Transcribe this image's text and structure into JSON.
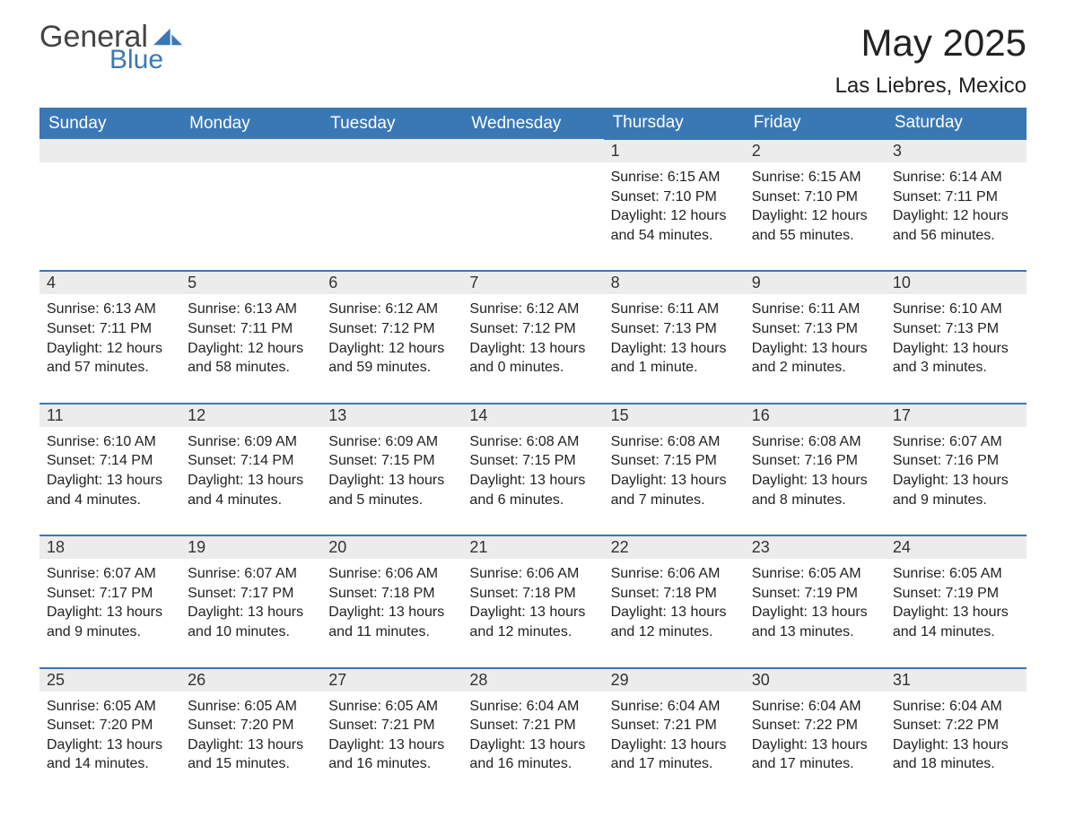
{
  "logo": {
    "text1": "General",
    "text2": "Blue",
    "accent_color": "#3a78b5",
    "text_color": "#444444"
  },
  "title": "May 2025",
  "location": "Las Liebres, Mexico",
  "colors": {
    "header_bg": "#3a78b5",
    "header_text": "#ffffff",
    "daynum_bg": "#ececec",
    "row_border": "#3a78b5",
    "body_text": "#222222",
    "page_bg": "#ffffff"
  },
  "typography": {
    "title_fontsize": 42,
    "location_fontsize": 24,
    "header_fontsize": 19,
    "daynum_fontsize": 18,
    "cell_fontsize": 16
  },
  "layout": {
    "columns": 7,
    "weeks": 5
  },
  "day_headers": [
    "Sunday",
    "Monday",
    "Tuesday",
    "Wednesday",
    "Thursday",
    "Friday",
    "Saturday"
  ],
  "weeks": [
    [
      null,
      null,
      null,
      null,
      {
        "n": "1",
        "sunrise": "6:15 AM",
        "sunset": "7:10 PM",
        "daylight": "12 hours and 54 minutes."
      },
      {
        "n": "2",
        "sunrise": "6:15 AM",
        "sunset": "7:10 PM",
        "daylight": "12 hours and 55 minutes."
      },
      {
        "n": "3",
        "sunrise": "6:14 AM",
        "sunset": "7:11 PM",
        "daylight": "12 hours and 56 minutes."
      }
    ],
    [
      {
        "n": "4",
        "sunrise": "6:13 AM",
        "sunset": "7:11 PM",
        "daylight": "12 hours and 57 minutes."
      },
      {
        "n": "5",
        "sunrise": "6:13 AM",
        "sunset": "7:11 PM",
        "daylight": "12 hours and 58 minutes."
      },
      {
        "n": "6",
        "sunrise": "6:12 AM",
        "sunset": "7:12 PM",
        "daylight": "12 hours and 59 minutes."
      },
      {
        "n": "7",
        "sunrise": "6:12 AM",
        "sunset": "7:12 PM",
        "daylight": "13 hours and 0 minutes."
      },
      {
        "n": "8",
        "sunrise": "6:11 AM",
        "sunset": "7:13 PM",
        "daylight": "13 hours and 1 minute."
      },
      {
        "n": "9",
        "sunrise": "6:11 AM",
        "sunset": "7:13 PM",
        "daylight": "13 hours and 2 minutes."
      },
      {
        "n": "10",
        "sunrise": "6:10 AM",
        "sunset": "7:13 PM",
        "daylight": "13 hours and 3 minutes."
      }
    ],
    [
      {
        "n": "11",
        "sunrise": "6:10 AM",
        "sunset": "7:14 PM",
        "daylight": "13 hours and 4 minutes."
      },
      {
        "n": "12",
        "sunrise": "6:09 AM",
        "sunset": "7:14 PM",
        "daylight": "13 hours and 4 minutes."
      },
      {
        "n": "13",
        "sunrise": "6:09 AM",
        "sunset": "7:15 PM",
        "daylight": "13 hours and 5 minutes."
      },
      {
        "n": "14",
        "sunrise": "6:08 AM",
        "sunset": "7:15 PM",
        "daylight": "13 hours and 6 minutes."
      },
      {
        "n": "15",
        "sunrise": "6:08 AM",
        "sunset": "7:15 PM",
        "daylight": "13 hours and 7 minutes."
      },
      {
        "n": "16",
        "sunrise": "6:08 AM",
        "sunset": "7:16 PM",
        "daylight": "13 hours and 8 minutes."
      },
      {
        "n": "17",
        "sunrise": "6:07 AM",
        "sunset": "7:16 PM",
        "daylight": "13 hours and 9 minutes."
      }
    ],
    [
      {
        "n": "18",
        "sunrise": "6:07 AM",
        "sunset": "7:17 PM",
        "daylight": "13 hours and 9 minutes."
      },
      {
        "n": "19",
        "sunrise": "6:07 AM",
        "sunset": "7:17 PM",
        "daylight": "13 hours and 10 minutes."
      },
      {
        "n": "20",
        "sunrise": "6:06 AM",
        "sunset": "7:18 PM",
        "daylight": "13 hours and 11 minutes."
      },
      {
        "n": "21",
        "sunrise": "6:06 AM",
        "sunset": "7:18 PM",
        "daylight": "13 hours and 12 minutes."
      },
      {
        "n": "22",
        "sunrise": "6:06 AM",
        "sunset": "7:18 PM",
        "daylight": "13 hours and 12 minutes."
      },
      {
        "n": "23",
        "sunrise": "6:05 AM",
        "sunset": "7:19 PM",
        "daylight": "13 hours and 13 minutes."
      },
      {
        "n": "24",
        "sunrise": "6:05 AM",
        "sunset": "7:19 PM",
        "daylight": "13 hours and 14 minutes."
      }
    ],
    [
      {
        "n": "25",
        "sunrise": "6:05 AM",
        "sunset": "7:20 PM",
        "daylight": "13 hours and 14 minutes."
      },
      {
        "n": "26",
        "sunrise": "6:05 AM",
        "sunset": "7:20 PM",
        "daylight": "13 hours and 15 minutes."
      },
      {
        "n": "27",
        "sunrise": "6:05 AM",
        "sunset": "7:21 PM",
        "daylight": "13 hours and 16 minutes."
      },
      {
        "n": "28",
        "sunrise": "6:04 AM",
        "sunset": "7:21 PM",
        "daylight": "13 hours and 16 minutes."
      },
      {
        "n": "29",
        "sunrise": "6:04 AM",
        "sunset": "7:21 PM",
        "daylight": "13 hours and 17 minutes."
      },
      {
        "n": "30",
        "sunrise": "6:04 AM",
        "sunset": "7:22 PM",
        "daylight": "13 hours and 17 minutes."
      },
      {
        "n": "31",
        "sunrise": "6:04 AM",
        "sunset": "7:22 PM",
        "daylight": "13 hours and 18 minutes."
      }
    ]
  ],
  "labels": {
    "sunrise": "Sunrise: ",
    "sunset": "Sunset: ",
    "daylight": "Daylight: "
  }
}
